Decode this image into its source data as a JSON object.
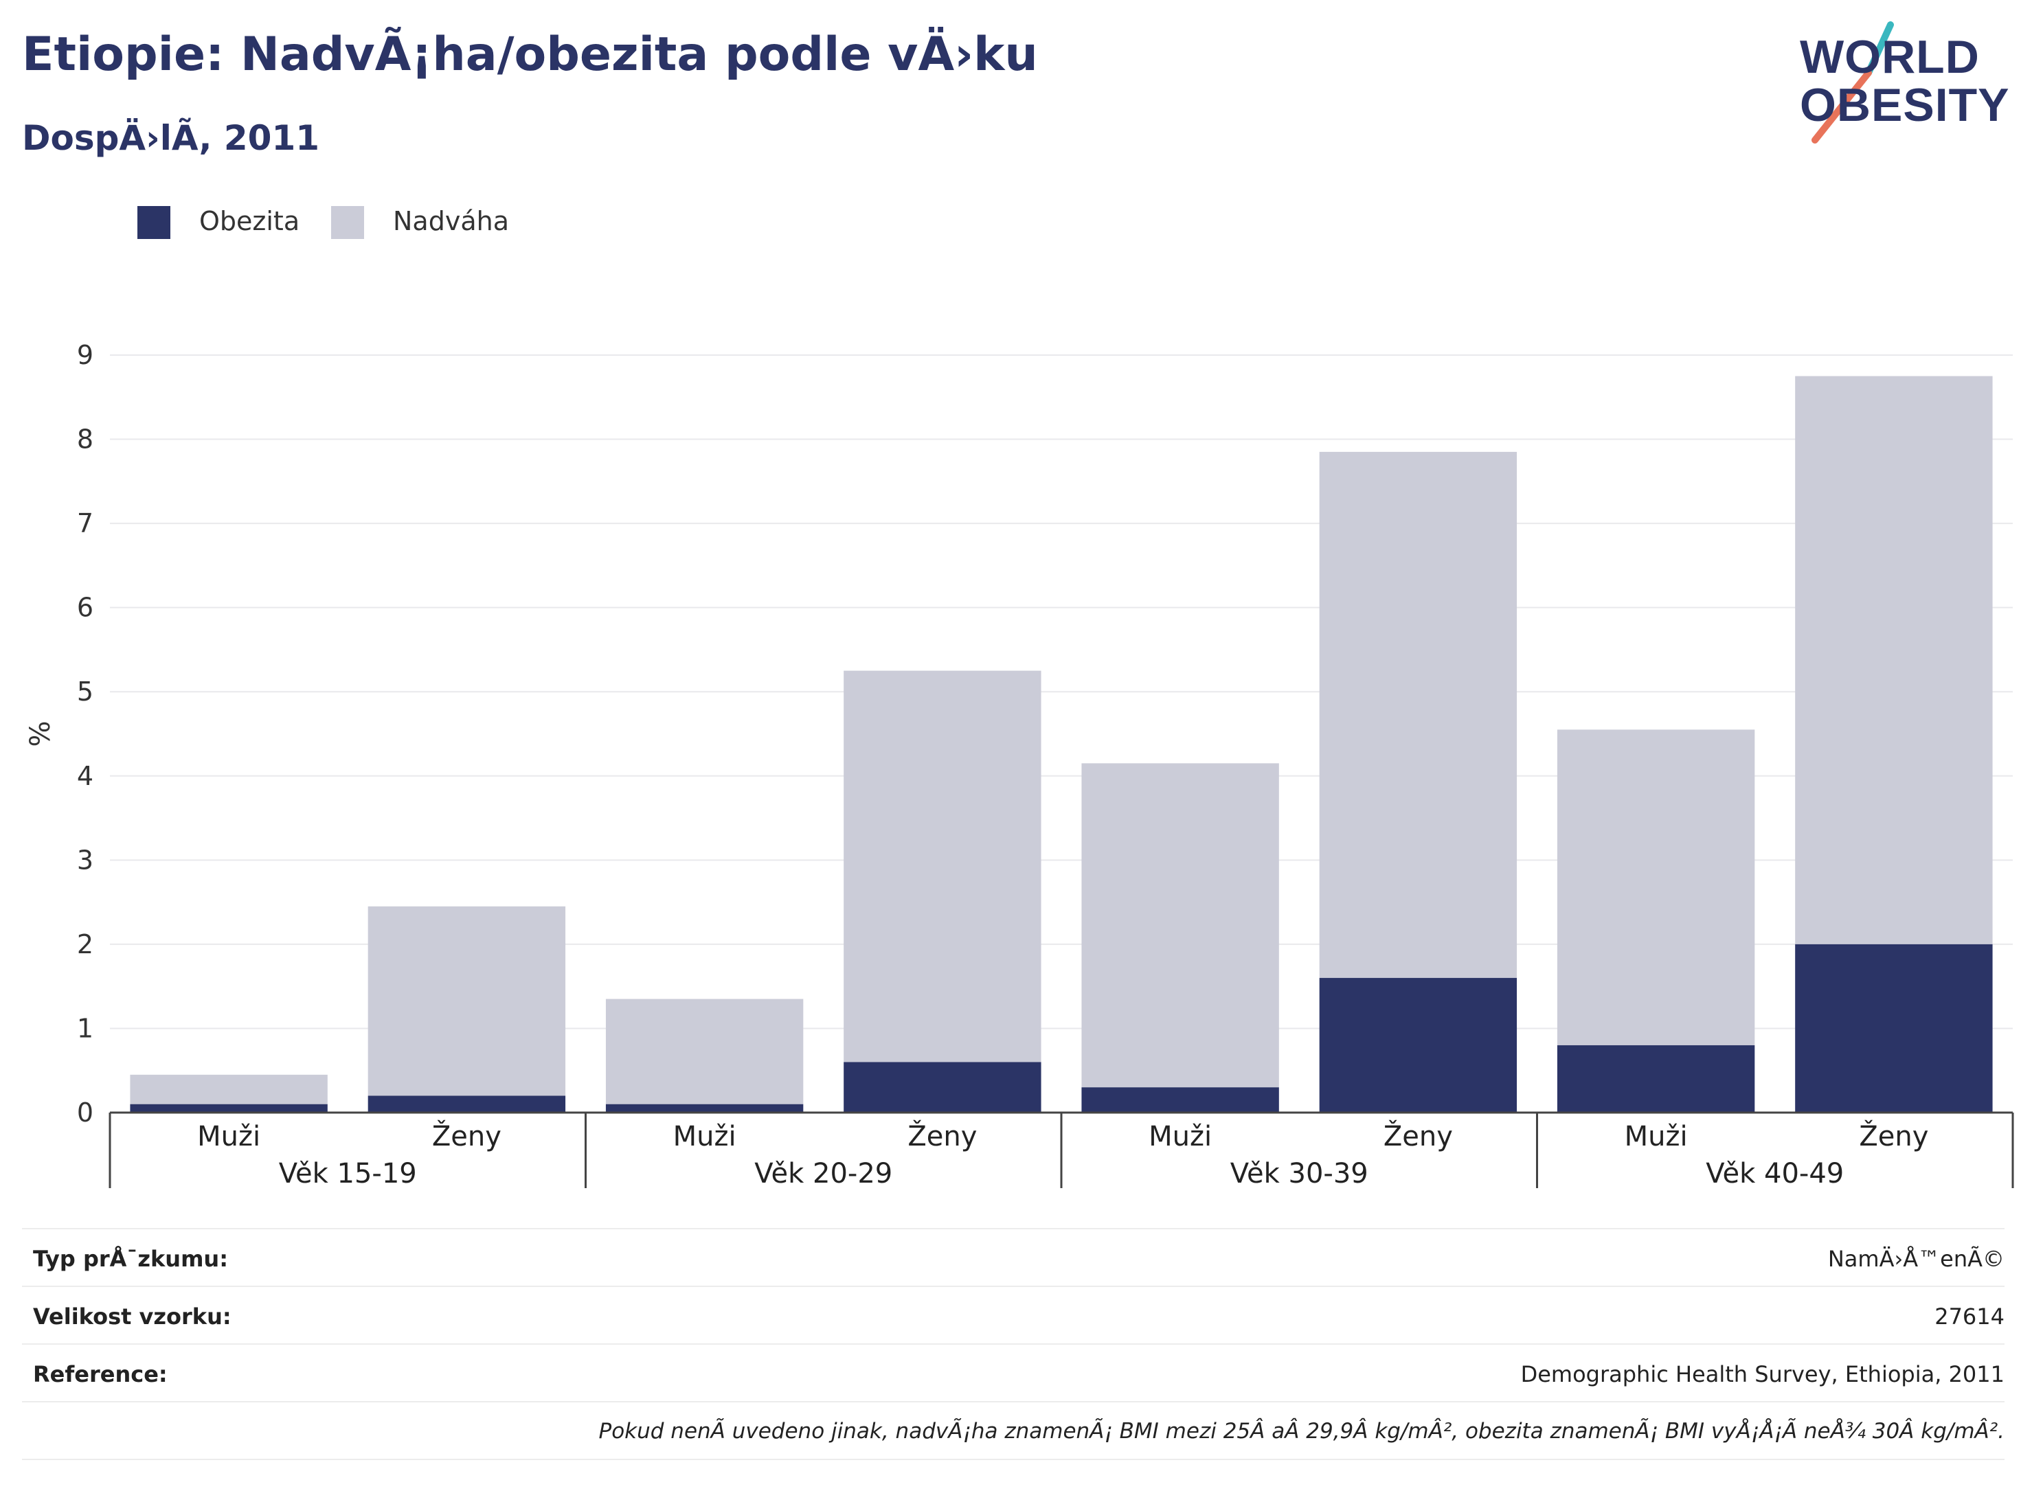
{
  "title": "Etiopie: NadvÃ¡ha/obezita podle vÄ›ku",
  "subtitle": "DospÄ›lÃ, 2011",
  "logo": {
    "line1": "WORLD",
    "line2": "OBESITY",
    "colors": {
      "text": "#2b3466",
      "teal": "#3ab7bf",
      "coral": "#e8735a"
    }
  },
  "colors": {
    "obesity": "#2b3466",
    "overweight": "#cbccd8",
    "title": "#2b3466"
  },
  "legend": [
    {
      "label": "Obezita",
      "color": "#2b3466"
    },
    {
      "label": "Nadváha",
      "color": "#cbccd8"
    }
  ],
  "chart_data": {
    "type": "bar",
    "stacked": true,
    "ylabel": "%",
    "ylim": [
      0,
      9
    ],
    "yticks": [
      "0",
      "1",
      "2",
      "3",
      "4",
      "5",
      "6",
      "7",
      "8",
      "9"
    ],
    "grid": true,
    "legend_position": "top-left",
    "groups": [
      "Věk 15-19",
      "Věk 20-29",
      "Věk 30-39",
      "Věk 40-49"
    ],
    "categories": [
      "Muži",
      "Ženy",
      "Muži",
      "Ženy",
      "Muži",
      "Ženy",
      "Muži",
      "Ženy"
    ],
    "series": [
      {
        "name": "Obezita",
        "values": [
          0.1,
          0.2,
          0.1,
          0.6,
          0.3,
          1.6,
          0.8,
          2.0
        ]
      },
      {
        "name": "Nadváha",
        "values": [
          0.35,
          2.25,
          1.25,
          4.65,
          3.85,
          6.25,
          3.75,
          6.75
        ]
      }
    ]
  },
  "info": [
    {
      "label": "Typ prÅ¯zkumu:",
      "value": "NamÄ›Å™enÃ©"
    },
    {
      "label": "Velikost vzorku:",
      "value": "27614"
    },
    {
      "label": "Reference:",
      "value": "Demographic Health Survey, Ethiopia, 2011"
    }
  ],
  "note": "Pokud nenÃ uvedeno jinak, nadvÃ¡ha znamenÃ¡ BMI mezi 25Â aÂ 29,9Â kg/mÂ², obezita znamenÃ¡ BMI vyÅ¡Å¡Ã neÅ¾ 30Â kg/mÂ²."
}
